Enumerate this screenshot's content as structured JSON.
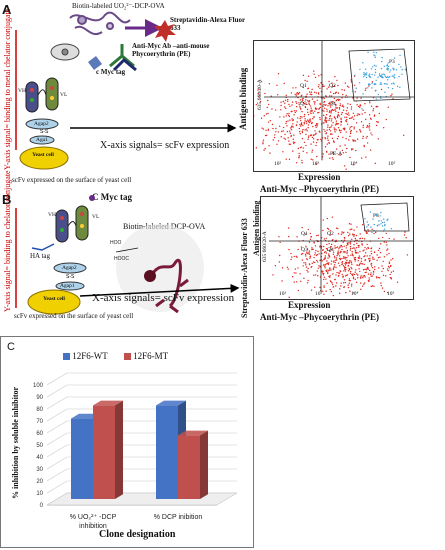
{
  "panel_a": {
    "letter": "A",
    "biotin_label": "Biotin-labeled UO₂²⁻-DCP-OVA",
    "streptavidin_label": "Streptavidin-Alexa Fluor 633",
    "anti_myc_label": "Anti-Myc Ab –anti-mouse Phycoerythrin (PE)",
    "cmyc_label": "c Myc tag",
    "vh": "VH",
    "vl": "VL",
    "agap2": "Agap2",
    "agap1": "Aga1",
    "yeast": "Yeast cell",
    "y_axis_signal": "Y-axis signal= binding to metal chelator conjugate",
    "x_axis_signal": "X-axis signals= scFv expression",
    "caption": "scFv expressed on the surface of  yeast cell",
    "plot_y_label": "Antigen binding",
    "plot_x_label": "Expression",
    "plot_footer": "Anti-Myc –Phycoerythrin (PE)",
    "gate": "P3",
    "quadrants": [
      "Q1",
      "Q2",
      "Q3",
      "Q4"
    ],
    "axis_x_small": "PE-A",
    "axis_y_small": "635 660/20-A",
    "ticks": [
      "10²",
      "10³",
      "10⁴",
      "10⁵"
    ]
  },
  "panel_b": {
    "letter": "B",
    "cmyc_label": "C Myc tag",
    "ha_label": "HA tag",
    "vh": "VH",
    "vl": "VL",
    "agap2": "Agap2",
    "agap1": "Agap1",
    "yeast": "Yeast cell",
    "biotin_label": "Biotin-labeled DCP-OVA",
    "y_axis_signal": "Y-axis signal= binding to chelator conjugate",
    "x_axis_signal": "X-axis signals= scFv expression",
    "caption": "scFv expressed on the surface of  yeast cell",
    "plot_y_label": "Antigen binding",
    "plot_y_outer": "Streptavidin-Alexa Fluor 633",
    "plot_x_label": "Expression",
    "plot_footer": "Anti-Myc –Phycoerythrin (PE)",
    "gate": "P3",
    "quadrants": [
      "Q1",
      "Q2",
      "Q3",
      "Q4"
    ],
    "axis_y_small": "635 660/20-A",
    "ticks": [
      "10²",
      "10³",
      "10⁴",
      "10⁵"
    ]
  },
  "chart_data": {
    "panel_letter": "C",
    "type": "bar",
    "categories": [
      "% UO₂²⁺ -DCP inhibition",
      "% DCP inibition"
    ],
    "category_lines": [
      [
        "%  UO₂²⁺ -DCP",
        "inhibition"
      ],
      [
        "% DCP inibition"
      ]
    ],
    "series": [
      {
        "name": "12F6-WT",
        "color": "#4472c4",
        "values": [
          67,
          78
        ]
      },
      {
        "name": "12F6-MT",
        "color": "#c0504d",
        "values": [
          78,
          53
        ]
      }
    ],
    "ylabel": "% inhibition by soluble inhibitor",
    "xlabel": "Clone designation",
    "ylim": [
      0,
      100
    ],
    "yticks": [
      "0",
      "10",
      "20",
      "30",
      "40",
      "50",
      "60",
      "70",
      "80",
      "90",
      "100"
    ],
    "grid": true,
    "legend_position": "top"
  }
}
